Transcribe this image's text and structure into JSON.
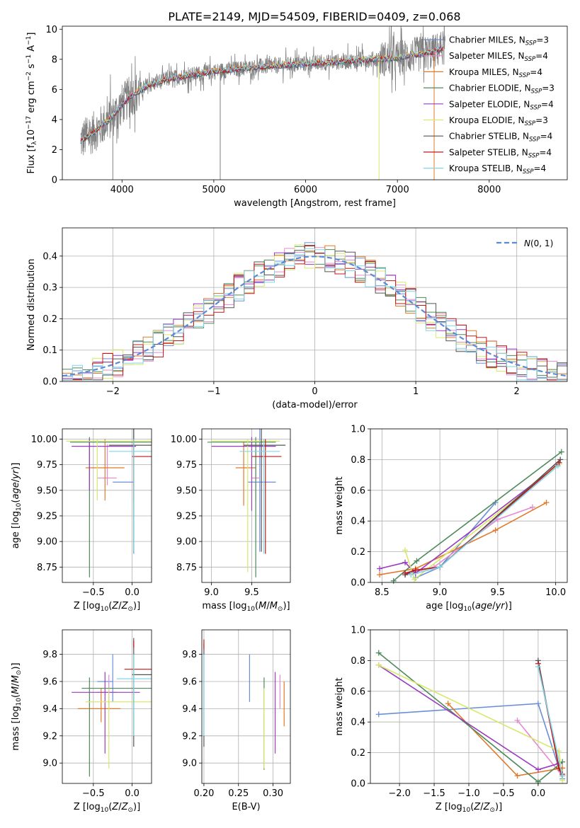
{
  "figure": {
    "title": "PLATE=2149, MJD=54509, FIBERID=0409, z=0.068"
  },
  "colors": {
    "Chabrier MILES": "#6a8fd8",
    "Salpeter MILES": "#e58ad0",
    "Kroupa MILES": "#e07a2a",
    "Chabrier ELODIE": "#4e8a5c",
    "Salpeter ELODIE": "#9a3bc0",
    "Kroupa ELODIE": "#d7e86a",
    "Chabrier STELIB": "#555555",
    "Salpeter STELIB": "#c01818",
    "Kroupa STELIB": "#7fd6e8",
    "data": "#808080",
    "normal": "#5b8bd6"
  },
  "chart_data": [
    {
      "id": "spectrum",
      "type": "line",
      "xlabel": "wavelength [Angstrom, rest frame]",
      "ylabel": "Flux [f_λ 10^-17 erg cm^-2 s^-1 A^-1]",
      "xlim": [
        3350,
        8850
      ],
      "ylim": [
        0,
        10.2
      ],
      "xticks": [
        4000,
        5000,
        6000,
        7000,
        8000
      ],
      "yticks": [
        0,
        2,
        4,
        6,
        8,
        10
      ],
      "grid": false,
      "legend_loc": "right",
      "legend": [
        {
          "name": "Chabrier MILES, N_SSP=3",
          "base": "Chabrier MILES, N",
          "sub": "SSP",
          "tail": "=3"
        },
        {
          "name": "Salpeter MILES, N_SSP=4",
          "base": "Salpeter MILES, N",
          "sub": "SSP",
          "tail": "=4"
        },
        {
          "name": "Kroupa MILES, N_SSP=4",
          "base": "Kroupa MILES, N",
          "sub": "SSP",
          "tail": "=4"
        },
        {
          "name": "Chabrier ELODIE, N_SSP=3",
          "base": "Chabrier ELODIE, N",
          "sub": "SSP",
          "tail": "=3"
        },
        {
          "name": "Salpeter ELODIE, N_SSP=4",
          "base": "Salpeter ELODIE, N",
          "sub": "SSP",
          "tail": "=4"
        },
        {
          "name": "Kroupa ELODIE, N_SSP=3",
          "base": "Kroupa ELODIE, N",
          "sub": "SSP",
          "tail": "=3"
        },
        {
          "name": "Chabrier STELIB, N_SSP=4",
          "base": "Chabrier STELIB, N",
          "sub": "SSP",
          "tail": "=4"
        },
        {
          "name": "Salpeter STELIB, N_SSP=4",
          "base": "Salpeter STELIB, N",
          "sub": "SSP",
          "tail": "=4"
        },
        {
          "name": "Kroupa STELIB, N_SSP=4",
          "base": "Kroupa STELIB, N",
          "sub": "SSP",
          "tail": "=4"
        }
      ],
      "continuum": {
        "x": [
          3550,
          3700,
          3900,
          4000,
          4100,
          4300,
          4500,
          5000,
          5500,
          6000,
          6500,
          7000,
          7400,
          7500
        ],
        "y": [
          2.6,
          3.2,
          4.2,
          5.0,
          5.6,
          6.3,
          6.7,
          7.2,
          7.5,
          7.7,
          7.9,
          8.1,
          8.5,
          8.8
        ]
      },
      "features": [
        {
          "x": 3900,
          "y": 0.0
        },
        {
          "x": 5070,
          "y": 0.0
        },
        {
          "x": 6800,
          "y": 0.0
        },
        {
          "x": 7400,
          "y": 0.0
        }
      ]
    },
    {
      "id": "residuals",
      "type": "histogram",
      "xlabel": "(data-model)/error",
      "ylabel": "Normed distribution",
      "xlim": [
        -2.5,
        2.5
      ],
      "ylim": [
        0,
        0.49
      ],
      "xticks": [
        -2,
        -1,
        0,
        1,
        2
      ],
      "yticks": [
        0.0,
        0.1,
        0.2,
        0.3,
        0.4
      ],
      "grid": true,
      "legend_loc": "upper right",
      "legend_label": "N(0,1)",
      "bin_width": 0.1,
      "normal": {
        "mean": 0,
        "sigma": 1
      }
    },
    {
      "id": "age-vs-Z",
      "type": "errorbar",
      "xlabel": "Z [log10(Z/Z☉)]",
      "ylabel": "age [log10(age/yr)]",
      "xlim": [
        -0.9,
        0.25
      ],
      "ylim": [
        8.6,
        10.1
      ],
      "xticks": [
        -0.5,
        0.0
      ],
      "yticks": [
        8.75,
        9.0,
        9.25,
        9.5,
        9.75,
        10.0
      ],
      "grid": true,
      "points": [
        {
          "model": "Chabrier MILES",
          "x": 0.02,
          "y": 9.58,
          "xlo": -0.25,
          "xhi": 0.02,
          "ylo": 8.88,
          "yhi": 10.12
        },
        {
          "model": "Salpeter MILES",
          "x": -0.32,
          "y": 9.62,
          "xlo": -0.45,
          "xhi": -0.2,
          "ylo": 9.55,
          "yhi": 9.95
        },
        {
          "model": "Kroupa MILES",
          "x": -0.35,
          "y": 9.72,
          "xlo": -0.6,
          "xhi": -0.1,
          "ylo": 9.4,
          "yhi": 10.0
        },
        {
          "model": "Chabrier ELODIE",
          "x": -0.55,
          "y": 9.97,
          "xlo": -0.8,
          "xhi": 0.25,
          "ylo": 8.65,
          "yhi": 10.02
        },
        {
          "model": "Salpeter ELODIE",
          "x": -0.55,
          "y": 9.93,
          "xlo": -0.78,
          "xhi": 0.05,
          "ylo": 9.5,
          "yhi": 10.0
        },
        {
          "model": "Kroupa ELODIE",
          "x": -0.45,
          "y": 9.98,
          "xlo": -0.85,
          "xhi": 0.25,
          "ylo": 9.4,
          "yhi": 10.0
        },
        {
          "model": "Chabrier STELIB",
          "x": 0.02,
          "y": 9.94,
          "xlo": -0.3,
          "xhi": 0.25,
          "ylo": 8.9,
          "yhi": 10.12
        },
        {
          "model": "Salpeter STELIB",
          "x": 0.02,
          "y": 9.83,
          "xlo": 0.0,
          "xhi": 0.25,
          "ylo": 9.4,
          "yhi": 10.0
        },
        {
          "model": "Kroupa STELIB",
          "x": 0.02,
          "y": 9.88,
          "xlo": -0.3,
          "xhi": 0.25,
          "ylo": 8.9,
          "yhi": 10.0
        }
      ]
    },
    {
      "id": "age-vs-mass",
      "type": "errorbar",
      "xlabel": "mass [log10(M/M☉)]",
      "ylabel": "",
      "xlim": [
        8.88,
        9.98
      ],
      "ylim": [
        8.6,
        10.1
      ],
      "xticks": [
        9.0,
        9.5
      ],
      "yticks": [
        8.75,
        9.0,
        9.25,
        9.5,
        9.75,
        10.0
      ],
      "grid": true,
      "points": [
        {
          "model": "Chabrier MILES",
          "x": 9.6,
          "y": 9.58,
          "xlo": 9.45,
          "xhi": 9.8,
          "ylo": 8.9,
          "yhi": 10.1
        },
        {
          "model": "Salpeter MILES",
          "x": 9.55,
          "y": 9.62,
          "xlo": 9.5,
          "xhi": 9.6,
          "ylo": 9.4,
          "yhi": 9.9
        },
        {
          "model": "Kroupa MILES",
          "x": 9.4,
          "y": 9.72,
          "xlo": 9.3,
          "xhi": 9.55,
          "ylo": 9.35,
          "yhi": 9.98
        },
        {
          "model": "Chabrier ELODIE",
          "x": 9.55,
          "y": 9.97,
          "xlo": 8.95,
          "xhi": 9.8,
          "ylo": 8.65,
          "yhi": 10.02
        },
        {
          "model": "Salpeter ELODIE",
          "x": 9.5,
          "y": 9.93,
          "xlo": 9.0,
          "xhi": 9.8,
          "ylo": 9.3,
          "yhi": 10.02
        },
        {
          "model": "Kroupa ELODIE",
          "x": 9.45,
          "y": 9.98,
          "xlo": 9.0,
          "xhi": 9.85,
          "ylo": 8.7,
          "yhi": 10.0
        },
        {
          "model": "Chabrier STELIB",
          "x": 9.62,
          "y": 9.94,
          "xlo": 9.4,
          "xhi": 9.92,
          "ylo": 8.9,
          "yhi": 10.12
        },
        {
          "model": "Salpeter STELIB",
          "x": 9.67,
          "y": 9.83,
          "xlo": 9.5,
          "xhi": 9.87,
          "ylo": 8.88,
          "yhi": 10.0
        },
        {
          "model": "Kroupa STELIB",
          "x": 9.65,
          "y": 9.88,
          "xlo": 9.35,
          "xhi": 9.85,
          "ylo": 8.88,
          "yhi": 10.0
        }
      ]
    },
    {
      "id": "weight-vs-age",
      "type": "line",
      "xlabel": "age [log10(age/yr)]",
      "ylabel": "mass weight",
      "xlim": [
        8.4,
        10.1
      ],
      "ylim": [
        0,
        1.0
      ],
      "xticks": [
        8.5,
        9.0,
        9.5,
        10.0
      ],
      "yticks": [
        0.0,
        0.2,
        0.4,
        0.6,
        0.8,
        1.0
      ],
      "grid": true,
      "series": [
        {
          "name": "Chabrier MILES",
          "x": [
            8.79,
            9.0,
            9.48
          ],
          "y": [
            0.03,
            0.1,
            0.52
          ]
        },
        {
          "name": "Salpeter MILES",
          "x": [
            8.7,
            8.95,
            9.5,
            9.8
          ],
          "y": [
            0.05,
            0.1,
            0.41,
            0.49
          ]
        },
        {
          "name": "Kroupa MILES",
          "x": [
            8.48,
            8.79,
            9.48,
            9.92
          ],
          "y": [
            0.05,
            0.09,
            0.34,
            0.52
          ]
        },
        {
          "name": "Chabrier ELODIE",
          "x": [
            8.6,
            8.8,
            10.05
          ],
          "y": [
            0.01,
            0.14,
            0.85
          ]
        },
        {
          "name": "Salpeter ELODIE",
          "x": [
            8.48,
            8.7,
            8.79,
            10.03
          ],
          "y": [
            0.09,
            0.13,
            0.06,
            0.77
          ]
        },
        {
          "name": "Kroupa ELODIE",
          "x": [
            8.7,
            8.78,
            10.03
          ],
          "y": [
            0.21,
            0.02,
            0.77
          ]
        },
        {
          "name": "Chabrier STELIB",
          "x": [
            8.7,
            8.79,
            9.0,
            10.04
          ],
          "y": [
            0.05,
            0.08,
            0.1,
            0.8
          ]
        },
        {
          "name": "Salpeter STELIB",
          "x": [
            8.7,
            8.79,
            9.0,
            10.03
          ],
          "y": [
            0.06,
            0.08,
            0.1,
            0.78
          ]
        },
        {
          "name": "Kroupa STELIB",
          "x": [
            8.75,
            9.0,
            10.02
          ],
          "y": [
            0.05,
            0.1,
            0.76
          ]
        }
      ]
    },
    {
      "id": "mass-vs-Z",
      "type": "errorbar",
      "xlabel": "Z [log10(Z/Z☉)]",
      "ylabel": "mass [log10(M/M☉)]",
      "xlim": [
        -0.9,
        0.25
      ],
      "ylim": [
        8.85,
        9.98
      ],
      "xticks": [
        -0.5,
        0.0
      ],
      "yticks": [
        9.0,
        9.2,
        9.4,
        9.6,
        9.8
      ],
      "grid": true,
      "points": [
        {
          "model": "Chabrier MILES",
          "x": -0.25,
          "y": 9.6,
          "xlo": -0.45,
          "xhi": -0.25,
          "ylo": 9.45,
          "yhi": 9.8
        },
        {
          "model": "Salpeter MILES",
          "x": -0.3,
          "y": 9.52,
          "xlo": -0.45,
          "xhi": -0.2,
          "ylo": 9.4,
          "yhi": 9.65
        },
        {
          "model": "Kroupa MILES",
          "x": -0.4,
          "y": 9.4,
          "xlo": -0.7,
          "xhi": -0.15,
          "ylo": 9.3,
          "yhi": 9.55
        },
        {
          "model": "Chabrier ELODIE",
          "x": -0.55,
          "y": 9.55,
          "xlo": -0.65,
          "xhi": 0.25,
          "ylo": 8.9,
          "yhi": 9.63
        },
        {
          "model": "Salpeter ELODIE",
          "x": -0.35,
          "y": 9.52,
          "xlo": -0.78,
          "xhi": 0.1,
          "ylo": 9.07,
          "yhi": 9.67
        },
        {
          "model": "Kroupa ELODIE",
          "x": -0.3,
          "y": 9.45,
          "xlo": -0.6,
          "xhi": 0.25,
          "ylo": 8.96,
          "yhi": 9.55
        },
        {
          "model": "Chabrier STELIB",
          "x": 0.02,
          "y": 9.65,
          "xlo": 0.0,
          "xhi": 0.25,
          "ylo": 9.12,
          "yhi": 9.92
        },
        {
          "model": "Salpeter STELIB",
          "x": 0.02,
          "y": 9.69,
          "xlo": -0.1,
          "xhi": 0.25,
          "ylo": 9.85,
          "yhi": 9.9
        },
        {
          "model": "Kroupa STELIB",
          "x": 0.02,
          "y": 9.62,
          "xlo": -0.2,
          "xhi": 0.25,
          "ylo": 9.2,
          "yhi": 9.8
        }
      ]
    },
    {
      "id": "mass-vs-EBV",
      "type": "errorbar",
      "xlabel": "E(B-V)",
      "ylabel": "",
      "xlim": [
        0.197,
        0.325
      ],
      "ylim": [
        8.85,
        9.98
      ],
      "xticks": [
        0.2,
        0.25,
        0.3
      ],
      "xtick_labels": [
        "0.20",
        "0.25",
        "0.30"
      ],
      "yticks": [
        9.0,
        9.2,
        9.4,
        9.6,
        9.8
      ],
      "grid": true,
      "points": [
        {
          "model": "Chabrier MILES",
          "x": 0.266,
          "y": 9.62,
          "ylo": 9.45,
          "yhi": 9.8
        },
        {
          "model": "Salpeter MILES",
          "x": 0.31,
          "y": 9.52,
          "ylo": 9.4,
          "yhi": 9.65
        },
        {
          "model": "Kroupa MILES",
          "x": 0.316,
          "y": 9.4,
          "ylo": 9.27,
          "yhi": 9.6
        },
        {
          "model": "Chabrier ELODIE",
          "x": 0.287,
          "y": 9.55,
          "ylo": 8.95,
          "yhi": 9.63
        },
        {
          "model": "Salpeter ELODIE",
          "x": 0.303,
          "y": 9.45,
          "ylo": 9.07,
          "yhi": 9.67
        },
        {
          "model": "Kroupa ELODIE",
          "x": 0.287,
          "y": 9.4,
          "ylo": 8.96,
          "yhi": 9.55
        },
        {
          "model": "Chabrier STELIB",
          "x": 0.2,
          "y": 9.5,
          "ylo": 9.12,
          "yhi": 9.88
        },
        {
          "model": "Salpeter STELIB",
          "x": 0.2,
          "y": 9.88,
          "ylo": 9.84,
          "yhi": 9.91
        },
        {
          "model": "Kroupa STELIB",
          "x": 0.2,
          "y": 9.5,
          "ylo": 9.2,
          "yhi": 9.8
        }
      ]
    },
    {
      "id": "weight-vs-Z",
      "type": "line",
      "xlabel": "Z [log10(Z/Z☉)]",
      "ylabel": "mass weight",
      "xlim": [
        -2.42,
        0.42
      ],
      "ylim": [
        0,
        1.0
      ],
      "xticks": [
        -2.0,
        -1.5,
        -1.0,
        -0.5,
        0.0
      ],
      "yticks": [
        0.0,
        0.2,
        0.4,
        0.6,
        0.8,
        1.0
      ],
      "grid": true,
      "series": [
        {
          "name": "Chabrier MILES",
          "x": [
            -2.3,
            0.0,
            0.35
          ],
          "y": [
            0.45,
            0.52,
            0.03
          ]
        },
        {
          "name": "Salpeter MILES",
          "x": [
            -0.3,
            0.35
          ],
          "y": [
            0.41,
            0.05
          ]
        },
        {
          "name": "Kroupa MILES",
          "x": [
            -1.3,
            -0.3,
            0.35
          ],
          "y": [
            0.52,
            0.05,
            0.1
          ]
        },
        {
          "name": "Chabrier ELODIE",
          "x": [
            -2.3,
            0.0,
            0.35
          ],
          "y": [
            0.85,
            0.01,
            0.14
          ]
        },
        {
          "name": "Salpeter ELODIE",
          "x": [
            -2.3,
            0.0,
            0.3
          ],
          "y": [
            0.77,
            0.09,
            0.13
          ]
        },
        {
          "name": "Kroupa ELODIE",
          "x": [
            -2.3,
            0.3,
            0.35
          ],
          "y": [
            0.77,
            0.21,
            0.02
          ]
        },
        {
          "name": "Chabrier STELIB",
          "x": [
            0.0,
            0.3,
            0.35
          ],
          "y": [
            0.8,
            0.1,
            0.05
          ]
        },
        {
          "name": "Salpeter STELIB",
          "x": [
            0.0,
            0.3,
            0.35
          ],
          "y": [
            0.78,
            0.1,
            0.06
          ]
        },
        {
          "name": "Kroupa STELIB",
          "x": [
            0.0,
            0.35
          ],
          "y": [
            0.76,
            0.05
          ]
        }
      ]
    }
  ]
}
